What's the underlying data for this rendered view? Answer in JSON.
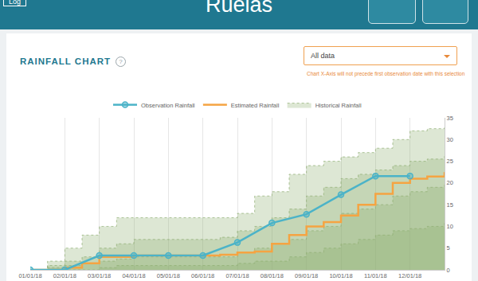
{
  "header": {
    "title": "Ruelas",
    "login": "Log"
  },
  "selector": {
    "value": "All data",
    "note": "Chart X-Axis will not precede first observation date with this selection"
  },
  "chart_data": {
    "type": "line",
    "title": "RAINFALL CHART",
    "help": "?",
    "categories": [
      "01/01/18",
      null,
      "02/01/18",
      null,
      "03/01/18",
      null,
      "04/01/18",
      null,
      "05/01/18",
      null,
      "06/01/18",
      null,
      "07/01/18",
      null,
      "08/01/18",
      null,
      "09/01/18",
      null,
      "10/01/18",
      null,
      "11/01/18",
      null,
      "12/01/18",
      null,
      null
    ],
    "series": [
      {
        "name": "Observation Rainfall",
        "color": "#4bb3c8",
        "marker": "circle",
        "values": [
          0,
          null,
          0,
          null,
          3.3,
          null,
          3.3,
          null,
          3.3,
          null,
          3.3,
          null,
          6.3,
          null,
          10.8,
          null,
          12.8,
          null,
          17.3,
          null,
          21.6,
          null,
          21.6,
          null,
          null
        ]
      },
      {
        "name": "Estimated Rainfall",
        "color": "#f5a442",
        "line_style": "step",
        "values": [
          0,
          0,
          0.5,
          1.5,
          3,
          3,
          3.3,
          3.3,
          3.3,
          3.3,
          3.3,
          3.5,
          4,
          4.2,
          6,
          8,
          10,
          11,
          12.5,
          15,
          17.5,
          20,
          21,
          21.5,
          22.5
        ]
      },
      {
        "name": "Historical Rainfall",
        "type": "area",
        "color": "#8fae72",
        "bands": [
          [
            0,
            2,
            5,
            8,
            10,
            12,
            12,
            12,
            12,
            12,
            12,
            12,
            13,
            17,
            18,
            22,
            24,
            25,
            26,
            27,
            28,
            30,
            32,
            32.5,
            33
          ],
          [
            0,
            1,
            2,
            3,
            5,
            6,
            7,
            7,
            7,
            7,
            7,
            7.5,
            9,
            10,
            12,
            14,
            17,
            19,
            21,
            22,
            23,
            24,
            25,
            25.5,
            26.5
          ],
          [
            0,
            0.5,
            1,
            1.5,
            2,
            2.5,
            3,
            3,
            3,
            3,
            3,
            3,
            4,
            5,
            6,
            7,
            9,
            10,
            13,
            14,
            15,
            17,
            18,
            19,
            20
          ],
          [
            0,
            0,
            0,
            0,
            0.5,
            1,
            1,
            1,
            1,
            1,
            1,
            1,
            1.5,
            2,
            2,
            3,
            4,
            5,
            6,
            7,
            8,
            9,
            9.5,
            10,
            11
          ]
        ]
      }
    ],
    "ylim": [
      0,
      35
    ],
    "yticks": [
      0,
      5,
      10,
      15,
      20,
      25,
      30,
      35
    ],
    "grid": true,
    "legend": "top"
  }
}
